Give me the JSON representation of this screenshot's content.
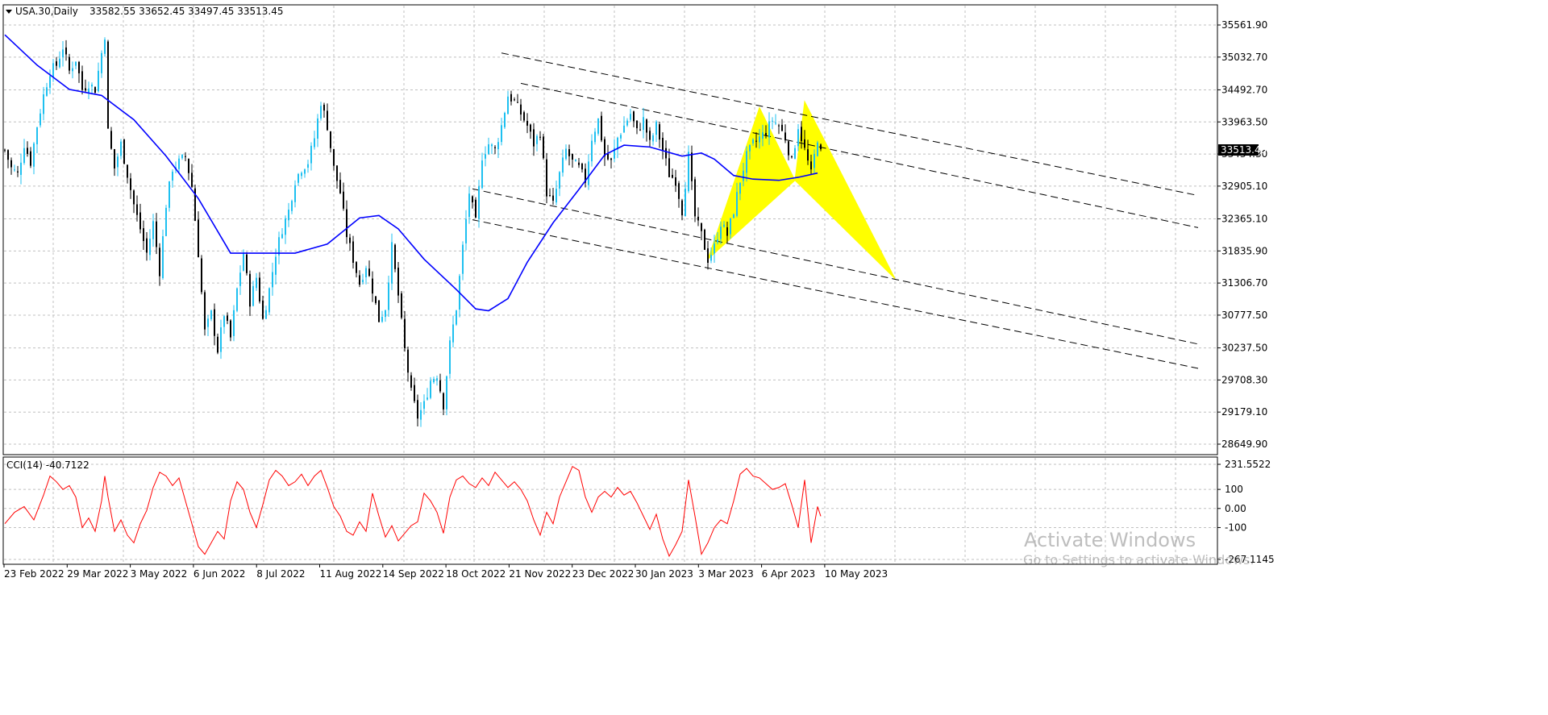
{
  "header": {
    "symbol_info": "USA.30,Daily",
    "ohlc": "33582.55 33652.45 33497.45 33513.45"
  },
  "current_price": "33513.45",
  "indicator": {
    "label": "CCI(14) -40.7122",
    "value": -40.7122
  },
  "watermark": {
    "title": "Activate Windows",
    "subtitle": "Go to Settings to activate Windows."
  },
  "colors": {
    "bull": "#1ec0f0",
    "bear": "#000000",
    "ma": "#0000ff",
    "cci": "#ff0000",
    "pattern": "#ffff00",
    "grid": "#c0c0c0",
    "channel": "#000000",
    "price_tag_bg": "#000000"
  },
  "chart_data": [
    {
      "type": "candlestick",
      "title": "USA.30,Daily",
      "x_tick_labels": [
        "23 Feb 2022",
        "29 Mar 2022",
        "3 May 2022",
        "6 Jun 2022",
        "8 Jul 2022",
        "11 Aug 2022",
        "14 Sep 2022",
        "18 Oct 2022",
        "21 Nov 2022",
        "23 Dec 2022",
        "30 Jan 2023",
        "3 Mar 2023",
        "6 Apr 2023",
        "10 May 2023"
      ],
      "y_tick_labels": [
        "35561.90",
        "35032.70",
        "34492.70",
        "33963.50",
        "33434.30",
        "32905.10",
        "32365.10",
        "31835.90",
        "31306.70",
        "30777.50",
        "30237.50",
        "29708.30",
        "29179.10",
        "28649.90"
      ],
      "ylim": [
        28400,
        35850
      ],
      "grid": true,
      "close_path": [
        [
          0,
          33500
        ],
        [
          2,
          33200
        ],
        [
          4,
          33100
        ],
        [
          6,
          33600
        ],
        [
          8,
          33300
        ],
        [
          10,
          33900
        ],
        [
          12,
          34400
        ],
        [
          14,
          34800
        ],
        [
          16,
          34900
        ],
        [
          18,
          35200
        ],
        [
          20,
          34800
        ],
        [
          22,
          35000
        ],
        [
          24,
          34500
        ],
        [
          26,
          34600
        ],
        [
          28,
          34500
        ],
        [
          30,
          35100
        ],
        [
          31,
          35400
        ],
        [
          32,
          33800
        ],
        [
          34,
          33200
        ],
        [
          36,
          33600
        ],
        [
          38,
          33100
        ],
        [
          40,
          32600
        ],
        [
          42,
          32200
        ],
        [
          44,
          31800
        ],
        [
          46,
          32300
        ],
        [
          48,
          31500
        ],
        [
          50,
          32600
        ],
        [
          52,
          33200
        ],
        [
          54,
          33300
        ],
        [
          56,
          33400
        ],
        [
          58,
          32900
        ],
        [
          60,
          31800
        ],
        [
          62,
          30500
        ],
        [
          64,
          30800
        ],
        [
          66,
          30200
        ],
        [
          68,
          30800
        ],
        [
          70,
          30400
        ],
        [
          72,
          31200
        ],
        [
          74,
          31800
        ],
        [
          76,
          31000
        ],
        [
          78,
          31400
        ],
        [
          80,
          30700
        ],
        [
          82,
          31200
        ],
        [
          84,
          31800
        ],
        [
          86,
          32200
        ],
        [
          88,
          32500
        ],
        [
          90,
          33000
        ],
        [
          92,
          33200
        ],
        [
          94,
          33300
        ],
        [
          96,
          33700
        ],
        [
          98,
          34300
        ],
        [
          100,
          33900
        ],
        [
          102,
          33200
        ],
        [
          104,
          32800
        ],
        [
          106,
          32100
        ],
        [
          108,
          31700
        ],
        [
          110,
          31300
        ],
        [
          112,
          31600
        ],
        [
          114,
          31200
        ],
        [
          116,
          30700
        ],
        [
          118,
          30900
        ],
        [
          120,
          31900
        ],
        [
          122,
          31100
        ],
        [
          124,
          30200
        ],
        [
          126,
          29500
        ],
        [
          128,
          29100
        ],
        [
          130,
          29300
        ],
        [
          132,
          29700
        ],
        [
          134,
          29800
        ],
        [
          136,
          29300
        ],
        [
          138,
          30300
        ],
        [
          140,
          30900
        ],
        [
          142,
          31900
        ],
        [
          144,
          32800
        ],
        [
          146,
          32300
        ],
        [
          148,
          33400
        ],
        [
          150,
          33600
        ],
        [
          152,
          33500
        ],
        [
          154,
          33900
        ],
        [
          156,
          34400
        ],
        [
          158,
          34300
        ],
        [
          160,
          34100
        ],
        [
          162,
          33900
        ],
        [
          164,
          33600
        ],
        [
          166,
          33800
        ],
        [
          168,
          32800
        ],
        [
          170,
          32600
        ],
        [
          172,
          33100
        ],
        [
          174,
          33500
        ],
        [
          176,
          33300
        ],
        [
          178,
          33200
        ],
        [
          180,
          33000
        ],
        [
          182,
          33700
        ],
        [
          184,
          34000
        ],
        [
          186,
          33400
        ],
        [
          188,
          33300
        ],
        [
          190,
          33700
        ],
        [
          192,
          33900
        ],
        [
          194,
          34100
        ],
        [
          196,
          33800
        ],
        [
          198,
          34000
        ],
        [
          200,
          33600
        ],
        [
          202,
          33900
        ],
        [
          204,
          33500
        ],
        [
          206,
          33100
        ],
        [
          208,
          33000
        ],
        [
          210,
          32500
        ],
        [
          212,
          33400
        ],
        [
          214,
          32400
        ],
        [
          216,
          32100
        ],
        [
          218,
          31700
        ],
        [
          220,
          31900
        ],
        [
          222,
          32300
        ],
        [
          224,
          32100
        ],
        [
          226,
          32500
        ],
        [
          228,
          33000
        ],
        [
          230,
          33400
        ],
        [
          232,
          33600
        ],
        [
          234,
          33700
        ],
        [
          236,
          33800
        ],
        [
          238,
          34000
        ],
        [
          240,
          33900
        ],
        [
          242,
          33700
        ],
        [
          244,
          33300
        ],
        [
          246,
          33900
        ],
        [
          248,
          33500
        ],
        [
          250,
          33100
        ],
        [
          252,
          33700
        ],
        [
          253,
          33513
        ]
      ],
      "moving_average": [
        [
          0,
          35400
        ],
        [
          10,
          34900
        ],
        [
          20,
          34500
        ],
        [
          30,
          34400
        ],
        [
          40,
          34000
        ],
        [
          50,
          33400
        ],
        [
          60,
          32700
        ],
        [
          70,
          31800
        ],
        [
          80,
          31800
        ],
        [
          90,
          31800
        ],
        [
          100,
          31950
        ],
        [
          110,
          32380
        ],
        [
          116,
          32420
        ],
        [
          122,
          32200
        ],
        [
          130,
          31700
        ],
        [
          140,
          31200
        ],
        [
          146,
          30880
        ],
        [
          150,
          30850
        ],
        [
          156,
          31050
        ],
        [
          162,
          31650
        ],
        [
          170,
          32300
        ],
        [
          178,
          32850
        ],
        [
          186,
          33420
        ],
        [
          192,
          33580
        ],
        [
          200,
          33550
        ],
        [
          210,
          33400
        ],
        [
          216,
          33450
        ],
        [
          220,
          33350
        ],
        [
          226,
          33080
        ],
        [
          232,
          33020
        ],
        [
          240,
          33000
        ],
        [
          246,
          33050
        ],
        [
          252,
          33120
        ]
      ],
      "pattern_points": [
        [
          218,
          31700
        ],
        [
          234,
          34200
        ],
        [
          245,
          33000
        ],
        [
          248,
          34300
        ],
        [
          276,
          31380
        ]
      ],
      "channel_lines": [
        [
          [
            154,
            35100
          ],
          [
            370,
            32750
          ]
        ],
        [
          [
            160,
            34600
          ],
          [
            370,
            32220
          ]
        ],
        [
          [
            145,
            32860
          ],
          [
            370,
            30300
          ]
        ],
        [
          [
            145,
            32350
          ],
          [
            370,
            29900
          ]
        ]
      ]
    },
    {
      "type": "line",
      "title": "CCI(14) -40.7122",
      "y_tick_labels": [
        "231.5522",
        "100",
        "0.00",
        "-100",
        "-267.1145"
      ],
      "ylim": [
        -267.1145,
        231.5522
      ],
      "grid": true,
      "values": [
        [
          0,
          -80
        ],
        [
          3,
          -20
        ],
        [
          6,
          10
        ],
        [
          9,
          -60
        ],
        [
          12,
          70
        ],
        [
          14,
          170
        ],
        [
          16,
          140
        ],
        [
          18,
          100
        ],
        [
          20,
          120
        ],
        [
          22,
          60
        ],
        [
          24,
          -100
        ],
        [
          26,
          -50
        ],
        [
          28,
          -120
        ],
        [
          30,
          40
        ],
        [
          31,
          170
        ],
        [
          32,
          60
        ],
        [
          34,
          -120
        ],
        [
          36,
          -60
        ],
        [
          38,
          -140
        ],
        [
          40,
          -180
        ],
        [
          42,
          -80
        ],
        [
          44,
          -10
        ],
        [
          46,
          110
        ],
        [
          48,
          190
        ],
        [
          50,
          170
        ],
        [
          52,
          120
        ],
        [
          54,
          160
        ],
        [
          56,
          40
        ],
        [
          58,
          -80
        ],
        [
          60,
          -200
        ],
        [
          62,
          -240
        ],
        [
          64,
          -180
        ],
        [
          66,
          -120
        ],
        [
          68,
          -160
        ],
        [
          70,
          40
        ],
        [
          72,
          140
        ],
        [
          74,
          100
        ],
        [
          76,
          -20
        ],
        [
          78,
          -100
        ],
        [
          80,
          20
        ],
        [
          82,
          150
        ],
        [
          84,
          200
        ],
        [
          86,
          170
        ],
        [
          88,
          120
        ],
        [
          90,
          140
        ],
        [
          92,
          180
        ],
        [
          94,
          120
        ],
        [
          96,
          170
        ],
        [
          98,
          200
        ],
        [
          100,
          110
        ],
        [
          102,
          10
        ],
        [
          104,
          -40
        ],
        [
          106,
          -120
        ],
        [
          108,
          -140
        ],
        [
          110,
          -70
        ],
        [
          112,
          -120
        ],
        [
          114,
          80
        ],
        [
          116,
          -40
        ],
        [
          118,
          -150
        ],
        [
          120,
          -90
        ],
        [
          122,
          -170
        ],
        [
          124,
          -130
        ],
        [
          126,
          -90
        ],
        [
          128,
          -70
        ],
        [
          130,
          80
        ],
        [
          132,
          40
        ],
        [
          134,
          -20
        ],
        [
          136,
          -130
        ],
        [
          138,
          60
        ],
        [
          140,
          150
        ],
        [
          142,
          170
        ],
        [
          144,
          130
        ],
        [
          146,
          110
        ],
        [
          148,
          160
        ],
        [
          150,
          120
        ],
        [
          152,
          190
        ],
        [
          154,
          150
        ],
        [
          156,
          110
        ],
        [
          158,
          140
        ],
        [
          160,
          100
        ],
        [
          162,
          40
        ],
        [
          164,
          -60
        ],
        [
          166,
          -140
        ],
        [
          168,
          -20
        ],
        [
          170,
          -80
        ],
        [
          172,
          60
        ],
        [
          174,
          140
        ],
        [
          176,
          220
        ],
        [
          178,
          200
        ],
        [
          180,
          60
        ],
        [
          182,
          -20
        ],
        [
          184,
          60
        ],
        [
          186,
          90
        ],
        [
          188,
          60
        ],
        [
          190,
          110
        ],
        [
          192,
          70
        ],
        [
          194,
          90
        ],
        [
          196,
          30
        ],
        [
          198,
          -40
        ],
        [
          200,
          -110
        ],
        [
          202,
          -30
        ],
        [
          204,
          -160
        ],
        [
          206,
          -250
        ],
        [
          208,
          -190
        ],
        [
          210,
          -120
        ],
        [
          212,
          150
        ],
        [
          214,
          -40
        ],
        [
          216,
          -240
        ],
        [
          218,
          -180
        ],
        [
          220,
          -100
        ],
        [
          222,
          -60
        ],
        [
          224,
          -80
        ],
        [
          226,
          40
        ],
        [
          228,
          180
        ],
        [
          230,
          210
        ],
        [
          232,
          170
        ],
        [
          234,
          160
        ],
        [
          236,
          130
        ],
        [
          238,
          100
        ],
        [
          240,
          110
        ],
        [
          242,
          130
        ],
        [
          244,
          20
        ],
        [
          246,
          -100
        ],
        [
          248,
          150
        ],
        [
          250,
          -180
        ],
        [
          252,
          10
        ],
        [
          253,
          -40.7
        ]
      ]
    }
  ]
}
